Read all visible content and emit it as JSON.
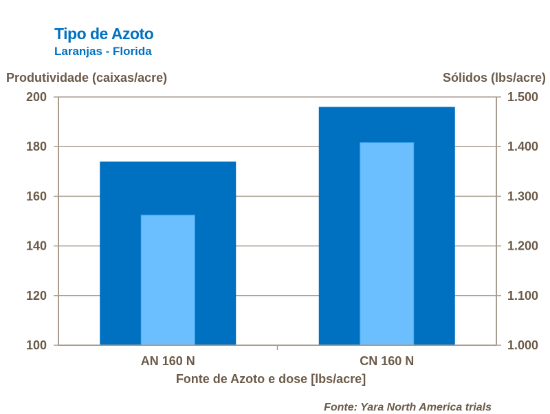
{
  "chart_data": {
    "type": "bar",
    "title": "Tipo de Azoto",
    "subtitle": "Laranjas - Florida",
    "xlabel": "Fonte de Azoto e dose [lbs/acre]",
    "ylabel_left": "Produtividade (caixas/acre)",
    "ylabel_right": "Sólidos (lbs/acre)",
    "categories": [
      "AN 160 N",
      "CN 160 N"
    ],
    "series": [
      {
        "axis": "left",
        "values": [
          174,
          196
        ],
        "color": "#0070C0"
      },
      {
        "axis": "right",
        "values": [
          1.262,
          1.408
        ],
        "color": "#6BBFFF"
      }
    ],
    "ylim_left": [
      100,
      200
    ],
    "ylim_right": [
      1.0,
      1.5
    ],
    "yticks_left": [
      "100",
      "120",
      "140",
      "160",
      "180",
      "200"
    ],
    "yticks_right": [
      "1.000",
      "1.100",
      "1.200",
      "1.300",
      "1.400",
      "1.500"
    ],
    "grid": true,
    "source": "Fonte: Yara North America trials"
  }
}
